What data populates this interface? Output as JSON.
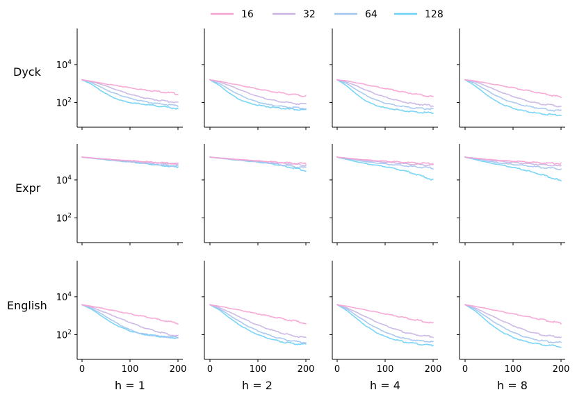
{
  "chart_data": {
    "type": "line",
    "layout": "grid",
    "rows": [
      "Dyck",
      "Expr",
      "English"
    ],
    "cols": [
      "h = 1",
      "h = 2",
      "h = 4",
      "h = 8"
    ],
    "legend": [
      {
        "name": "16",
        "color": "#f7a1d2"
      },
      {
        "name": "32",
        "color": "#c9b3e3"
      },
      {
        "name": "64",
        "color": "#a3c4ee"
      },
      {
        "name": "128",
        "color": "#6dd0f5"
      }
    ],
    "x_ticks": [
      "0",
      "100",
      "200"
    ],
    "x_tick_values": [
      0,
      100,
      200
    ],
    "xlim": [
      -10,
      210
    ],
    "y_scale": "log",
    "y_ticks": [
      "10^4",
      "10^2"
    ],
    "y_tick_labels": [
      {
        "base": "10",
        "exp": "4"
      },
      {
        "base": "10",
        "exp": "2"
      }
    ],
    "y_tick_values": [
      4,
      2
    ],
    "ylim_log10": [
      0.7,
      5.9
    ],
    "x": [
      0,
      20,
      40,
      60,
      80,
      100,
      120,
      140,
      160,
      180,
      200
    ],
    "panels": [
      [
        {
          "series": [
            [
              3.2,
              3.12,
              3.02,
              2.94,
              2.86,
              2.78,
              2.7,
              2.64,
              2.58,
              2.52,
              2.45
            ],
            [
              3.2,
              3.1,
              2.96,
              2.78,
              2.6,
              2.44,
              2.3,
              2.2,
              2.12,
              2.06,
              2.0
            ],
            [
              3.2,
              3.05,
              2.8,
              2.56,
              2.38,
              2.22,
              2.1,
              2.0,
              1.93,
              1.88,
              1.84
            ],
            [
              3.2,
              2.96,
              2.62,
              2.32,
              2.12,
              2.0,
              1.93,
              1.87,
              1.81,
              1.74,
              1.68
            ]
          ]
        },
        {
          "series": [
            [
              3.2,
              3.12,
              3.02,
              2.92,
              2.82,
              2.72,
              2.62,
              2.54,
              2.46,
              2.4,
              2.33
            ],
            [
              3.2,
              3.08,
              2.9,
              2.7,
              2.5,
              2.32,
              2.18,
              2.08,
              2.0,
              1.95,
              1.9
            ],
            [
              3.2,
              3.0,
              2.7,
              2.42,
              2.2,
              2.02,
              1.9,
              1.82,
              1.76,
              1.72,
              1.7
            ],
            [
              3.2,
              2.9,
              2.5,
              2.18,
              1.98,
              1.86,
              1.78,
              1.72,
              1.67,
              1.63,
              1.6
            ]
          ]
        },
        {
          "series": [
            [
              3.2,
              3.14,
              3.04,
              2.94,
              2.84,
              2.74,
              2.64,
              2.54,
              2.46,
              2.38,
              2.3
            ],
            [
              3.2,
              3.08,
              2.88,
              2.66,
              2.46,
              2.28,
              2.14,
              2.02,
              1.94,
              1.88,
              1.82
            ],
            [
              3.2,
              3.0,
              2.68,
              2.38,
              2.14,
              1.98,
              1.86,
              1.78,
              1.72,
              1.68,
              1.66
            ],
            [
              3.2,
              2.88,
              2.44,
              2.08,
              1.86,
              1.72,
              1.64,
              1.56,
              1.5,
              1.47,
              1.44
            ]
          ]
        },
        {
          "series": [
            [
              3.2,
              3.14,
              3.05,
              2.96,
              2.87,
              2.78,
              2.68,
              2.58,
              2.48,
              2.38,
              2.28
            ],
            [
              3.2,
              3.1,
              2.92,
              2.7,
              2.5,
              2.32,
              2.16,
              2.02,
              1.92,
              1.86,
              1.8
            ],
            [
              3.2,
              3.02,
              2.72,
              2.42,
              2.18,
              2.0,
              1.86,
              1.76,
              1.68,
              1.6,
              1.56
            ],
            [
              3.2,
              2.9,
              2.5,
              2.14,
              1.88,
              1.7,
              1.56,
              1.48,
              1.4,
              1.36,
              1.34
            ]
          ]
        }
      ],
      [
        {
          "series": [
            [
              5.2,
              5.16,
              5.12,
              5.08,
              5.04,
              5.02,
              4.98,
              4.94,
              4.9,
              4.88,
              4.86
            ],
            [
              5.2,
              5.16,
              5.11,
              5.07,
              5.03,
              5.0,
              4.96,
              4.92,
              4.88,
              4.85,
              4.83
            ],
            [
              5.2,
              5.15,
              5.1,
              5.05,
              5.0,
              4.96,
              4.92,
              4.86,
              4.8,
              4.76,
              4.72
            ],
            [
              5.2,
              5.15,
              5.09,
              5.04,
              4.99,
              4.95,
              4.9,
              4.84,
              4.78,
              4.73,
              4.68
            ]
          ]
        },
        {
          "series": [
            [
              5.2,
              5.16,
              5.12,
              5.08,
              5.04,
              5.0,
              4.97,
              4.94,
              4.9,
              4.88,
              4.86
            ],
            [
              5.2,
              5.16,
              5.11,
              5.07,
              5.03,
              4.99,
              4.95,
              4.9,
              4.86,
              4.82,
              4.79
            ],
            [
              5.2,
              5.15,
              5.1,
              5.05,
              5.0,
              4.96,
              4.9,
              4.84,
              4.76,
              4.7,
              4.64
            ],
            [
              5.2,
              5.15,
              5.09,
              5.04,
              4.99,
              4.94,
              4.88,
              4.8,
              4.7,
              4.6,
              4.48
            ]
          ]
        },
        {
          "series": [
            [
              5.2,
              5.15,
              5.1,
              5.06,
              5.02,
              4.99,
              4.96,
              4.93,
              4.9,
              4.88,
              4.86
            ],
            [
              5.2,
              5.14,
              5.08,
              5.02,
              4.98,
              4.94,
              4.9,
              4.86,
              4.82,
              4.8,
              4.78
            ],
            [
              5.2,
              5.12,
              5.04,
              4.96,
              4.9,
              4.85,
              4.8,
              4.75,
              4.7,
              4.66,
              4.62
            ],
            [
              5.2,
              5.08,
              4.96,
              4.86,
              4.78,
              4.7,
              4.6,
              4.48,
              4.34,
              4.18,
              4.0
            ]
          ]
        },
        {
          "series": [
            [
              5.2,
              5.15,
              5.1,
              5.06,
              5.02,
              4.99,
              4.96,
              4.93,
              4.9,
              4.88,
              4.86
            ],
            [
              5.2,
              5.14,
              5.08,
              5.02,
              4.97,
              4.93,
              4.88,
              4.84,
              4.8,
              4.76,
              4.72
            ],
            [
              5.2,
              5.12,
              5.03,
              4.94,
              4.87,
              4.82,
              4.77,
              4.72,
              4.66,
              4.62,
              4.58
            ],
            [
              5.2,
              5.08,
              4.96,
              4.86,
              4.76,
              4.66,
              4.55,
              4.42,
              4.28,
              4.12,
              3.94
            ]
          ]
        }
      ],
      [
        {
          "series": [
            [
              3.58,
              3.5,
              3.4,
              3.3,
              3.2,
              3.1,
              3.0,
              2.9,
              2.8,
              2.7,
              2.6
            ],
            [
              3.58,
              3.45,
              3.25,
              3.05,
              2.85,
              2.65,
              2.45,
              2.28,
              2.14,
              2.02,
              1.92
            ],
            [
              3.58,
              3.4,
              3.1,
              2.8,
              2.5,
              2.26,
              2.08,
              1.98,
              1.92,
              1.88,
              1.86
            ],
            [
              3.58,
              3.34,
              3.0,
              2.65,
              2.4,
              2.2,
              2.06,
              1.98,
              1.92,
              1.87,
              1.83
            ]
          ]
        },
        {
          "series": [
            [
              3.58,
              3.5,
              3.4,
              3.3,
              3.2,
              3.1,
              3.0,
              2.9,
              2.8,
              2.7,
              2.6
            ],
            [
              3.58,
              3.42,
              3.2,
              2.96,
              2.72,
              2.5,
              2.32,
              2.16,
              2.02,
              1.92,
              1.84
            ],
            [
              3.58,
              3.36,
              3.04,
              2.72,
              2.44,
              2.2,
              2.0,
              1.84,
              1.72,
              1.64,
              1.58
            ],
            [
              3.58,
              3.3,
              2.9,
              2.54,
              2.24,
              2.0,
              1.82,
              1.68,
              1.58,
              1.52,
              1.48
            ]
          ]
        },
        {
          "series": [
            [
              3.58,
              3.5,
              3.4,
              3.3,
              3.2,
              3.1,
              3.0,
              2.9,
              2.8,
              2.7,
              2.6
            ],
            [
              3.58,
              3.42,
              3.18,
              2.94,
              2.7,
              2.48,
              2.3,
              2.14,
              2.02,
              1.94,
              1.9
            ],
            [
              3.58,
              3.36,
              3.02,
              2.68,
              2.38,
              2.14,
              1.94,
              1.8,
              1.72,
              1.66,
              1.62
            ],
            [
              3.58,
              3.28,
              2.86,
              2.46,
              2.14,
              1.9,
              1.74,
              1.62,
              1.54,
              1.48,
              1.44
            ]
          ]
        },
        {
          "series": [
            [
              3.58,
              3.5,
              3.4,
              3.3,
              3.2,
              3.1,
              3.0,
              2.9,
              2.8,
              2.7,
              2.6
            ],
            [
              3.58,
              3.42,
              3.18,
              2.94,
              2.7,
              2.48,
              2.28,
              2.12,
              2.0,
              1.92,
              1.88
            ],
            [
              3.58,
              3.36,
              3.02,
              2.68,
              2.38,
              2.12,
              1.92,
              1.78,
              1.68,
              1.62,
              1.58
            ],
            [
              3.58,
              3.28,
              2.84,
              2.42,
              2.1,
              1.86,
              1.68,
              1.56,
              1.48,
              1.42,
              1.38
            ]
          ]
        }
      ]
    ]
  }
}
